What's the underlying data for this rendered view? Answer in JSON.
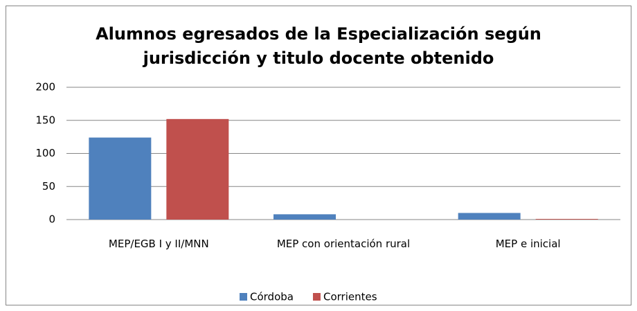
{
  "chart_data": {
    "type": "bar",
    "title": "Alumnos egresados de la Especialización según jurisdicción y titulo docente obtenido",
    "categories": [
      "MEP/EGB I y II/MNN",
      "MEP con orientación rural",
      "MEP e inicial"
    ],
    "series": [
      {
        "name": "Córdoba",
        "color": "#4f81bd",
        "values": [
          124,
          8,
          10
        ]
      },
      {
        "name": "Corrientes",
        "color": "#c0504d",
        "values": [
          152,
          0,
          1
        ]
      }
    ],
    "ylim": [
      0,
      200
    ],
    "yticks": [
      0,
      50,
      100,
      150,
      200
    ],
    "grid": true,
    "legend": "bottom"
  }
}
